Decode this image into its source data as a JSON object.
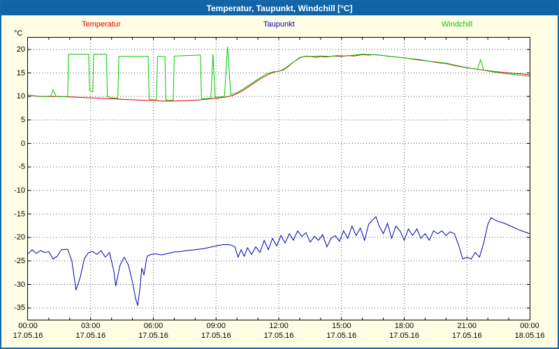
{
  "window": {
    "title": "Temperatur, Taupunkt, Windchill [°C]"
  },
  "colors": {
    "titlebar": "#1164A8",
    "window_border": "#1467A8",
    "background": "#FFFDE4",
    "plot_background": "#FFFFFF",
    "grid": "#555555",
    "axis": "#000000",
    "temperatur": "#DD0000",
    "taupunkt": "#0000B4",
    "windchill": "#00C800"
  },
  "chart_data": {
    "type": "line",
    "title": "Temperatur, Taupunkt, Windchill [°C]",
    "xlabel": "",
    "ylabel": "°C",
    "grid": "dotted",
    "legend_position": "top",
    "xlim": [
      0,
      24
    ],
    "ylim": [
      -37.5,
      22.5
    ],
    "y_ticks": [
      20,
      15,
      10,
      5,
      0,
      -5,
      -10,
      -15,
      -20,
      -25,
      -30,
      -35
    ],
    "x_ticks": [
      {
        "hour": 0,
        "time": "00:00",
        "date": "17.05.16"
      },
      {
        "hour": 3,
        "time": "03:00",
        "date": "17.05.16"
      },
      {
        "hour": 6,
        "time": "06:00",
        "date": "17.05.16"
      },
      {
        "hour": 9,
        "time": "09:00",
        "date": "17.05.16"
      },
      {
        "hour": 12,
        "time": "12:00",
        "date": "17.05.16"
      },
      {
        "hour": 15,
        "time": "15:00",
        "date": "17.05.16"
      },
      {
        "hour": 18,
        "time": "18:00",
        "date": "17.05.16"
      },
      {
        "hour": 21,
        "time": "21:00",
        "date": "17.05.16"
      },
      {
        "hour": 24,
        "time": "00:00",
        "date": "18.05.16"
      }
    ],
    "series": [
      {
        "name": "Temperatur",
        "color": "#DD0000",
        "points": [
          [
            0,
            10.3
          ],
          [
            0.3,
            10.1
          ],
          [
            0.6,
            10.0
          ],
          [
            1,
            10.0
          ],
          [
            1.4,
            10.0
          ],
          [
            2,
            9.9
          ],
          [
            2.5,
            9.8
          ],
          [
            3,
            9.7
          ],
          [
            3.5,
            9.6
          ],
          [
            4,
            9.5
          ],
          [
            4.5,
            9.4
          ],
          [
            5,
            9.3
          ],
          [
            5.5,
            9.2
          ],
          [
            6,
            9.1
          ],
          [
            6.5,
            9.0
          ],
          [
            7,
            9.0
          ],
          [
            7.5,
            9.1
          ],
          [
            8,
            9.2
          ],
          [
            8.5,
            9.4
          ],
          [
            9,
            9.6
          ],
          [
            9.5,
            9.9
          ],
          [
            9.8,
            10.2
          ],
          [
            10,
            10.6
          ],
          [
            10.3,
            11.3
          ],
          [
            10.6,
            12.2
          ],
          [
            11,
            13.4
          ],
          [
            11.3,
            14.2
          ],
          [
            11.6,
            14.9
          ],
          [
            11.8,
            15.2
          ],
          [
            12,
            15.4
          ],
          [
            12.2,
            15.6
          ],
          [
            12.4,
            16.2
          ],
          [
            12.7,
            17.3
          ],
          [
            13,
            18.2
          ],
          [
            13.2,
            18.5
          ],
          [
            13.5,
            18.5
          ],
          [
            13.8,
            18.3
          ],
          [
            14,
            18.5
          ],
          [
            14.3,
            18.4
          ],
          [
            14.6,
            18.6
          ],
          [
            15,
            18.5
          ],
          [
            15.3,
            18.7
          ],
          [
            15.6,
            18.6
          ],
          [
            16,
            18.9
          ],
          [
            16.3,
            18.8
          ],
          [
            16.6,
            18.9
          ],
          [
            17,
            18.7
          ],
          [
            17.3,
            18.5
          ],
          [
            17.6,
            18.4
          ],
          [
            18,
            18.2
          ],
          [
            18.3,
            18.0
          ],
          [
            18.6,
            17.8
          ],
          [
            19,
            17.6
          ],
          [
            19.3,
            17.4
          ],
          [
            19.6,
            17.2
          ],
          [
            20,
            17.0
          ],
          [
            20.3,
            16.7
          ],
          [
            20.6,
            16.4
          ],
          [
            21,
            16.1
          ],
          [
            21.3,
            15.9
          ],
          [
            21.6,
            15.7
          ],
          [
            22,
            15.5
          ],
          [
            22.3,
            15.3
          ],
          [
            22.6,
            15.2
          ],
          [
            23,
            15.0
          ],
          [
            23.3,
            14.9
          ],
          [
            23.6,
            14.8
          ],
          [
            24,
            14.6
          ]
        ]
      },
      {
        "name": "Taupunkt",
        "color": "#0000B4",
        "points": [
          [
            0,
            -23.5
          ],
          [
            0.2,
            -22.6
          ],
          [
            0.4,
            -23.4
          ],
          [
            0.6,
            -22.8
          ],
          [
            0.8,
            -23.2
          ],
          [
            1,
            -23.0
          ],
          [
            1.2,
            -24.6
          ],
          [
            1.4,
            -24.0
          ],
          [
            1.6,
            -22.6
          ],
          [
            1.9,
            -22.5
          ],
          [
            2.1,
            -25.0
          ],
          [
            2.3,
            -31.2
          ],
          [
            2.5,
            -28.5
          ],
          [
            2.7,
            -24.5
          ],
          [
            2.9,
            -23.2
          ],
          [
            3.1,
            -23.0
          ],
          [
            3.3,
            -23.6
          ],
          [
            3.5,
            -22.8
          ],
          [
            3.7,
            -24.2
          ],
          [
            3.9,
            -23.2
          ],
          [
            4.1,
            -27.0
          ],
          [
            4.2,
            -30.3
          ],
          [
            4.4,
            -26.0
          ],
          [
            4.6,
            -24.2
          ],
          [
            4.8,
            -25.8
          ],
          [
            5,
            -29.5
          ],
          [
            5.15,
            -33.0
          ],
          [
            5.25,
            -34.5
          ],
          [
            5.35,
            -31.0
          ],
          [
            5.45,
            -26.5
          ],
          [
            5.55,
            -28.0
          ],
          [
            5.7,
            -24.0
          ],
          [
            5.9,
            -23.6
          ],
          [
            6.1,
            -23.5
          ],
          [
            6.4,
            -23.7
          ],
          [
            6.7,
            -23.4
          ],
          [
            7,
            -23.1
          ],
          [
            7.3,
            -23.0
          ],
          [
            7.6,
            -22.8
          ],
          [
            8,
            -22.6
          ],
          [
            8.4,
            -22.4
          ],
          [
            8.8,
            -22.0
          ],
          [
            9.1,
            -21.7
          ],
          [
            9.4,
            -21.5
          ],
          [
            9.7,
            -21.6
          ],
          [
            9.9,
            -22.0
          ],
          [
            10.05,
            -24.2
          ],
          [
            10.2,
            -22.6
          ],
          [
            10.35,
            -24.0
          ],
          [
            10.5,
            -22.2
          ],
          [
            10.7,
            -23.6
          ],
          [
            10.9,
            -22.0
          ],
          [
            11.1,
            -23.2
          ],
          [
            11.3,
            -20.6
          ],
          [
            11.5,
            -22.6
          ],
          [
            11.7,
            -20.2
          ],
          [
            11.9,
            -21.8
          ],
          [
            12.1,
            -19.6
          ],
          [
            12.3,
            -21.2
          ],
          [
            12.5,
            -19.2
          ],
          [
            12.7,
            -20.6
          ],
          [
            12.9,
            -18.6
          ],
          [
            13.1,
            -19.8
          ],
          [
            13.3,
            -19.0
          ],
          [
            13.5,
            -21.0
          ],
          [
            13.7,
            -19.8
          ],
          [
            13.9,
            -20.6
          ],
          [
            14.1,
            -19.4
          ],
          [
            14.3,
            -22.0
          ],
          [
            14.5,
            -20.2
          ],
          [
            14.7,
            -19.6
          ],
          [
            14.9,
            -20.8
          ],
          [
            15.1,
            -18.6
          ],
          [
            15.3,
            -20.2
          ],
          [
            15.5,
            -17.6
          ],
          [
            15.7,
            -19.6
          ],
          [
            15.9,
            -18.0
          ],
          [
            16.1,
            -20.6
          ],
          [
            16.3,
            -17.2
          ],
          [
            16.5,
            -16.2
          ],
          [
            16.65,
            -15.6
          ],
          [
            16.8,
            -17.6
          ],
          [
            17,
            -19.2
          ],
          [
            17.2,
            -17.0
          ],
          [
            17.4,
            -20.2
          ],
          [
            17.6,
            -17.6
          ],
          [
            17.8,
            -18.6
          ],
          [
            18,
            -20.6
          ],
          [
            18.2,
            -18.2
          ],
          [
            18.4,
            -19.6
          ],
          [
            18.6,
            -18.2
          ],
          [
            18.8,
            -20.2
          ],
          [
            19,
            -19.2
          ],
          [
            19.2,
            -20.6
          ],
          [
            19.4,
            -18.6
          ],
          [
            19.6,
            -19.2
          ],
          [
            19.8,
            -18.6
          ],
          [
            20,
            -19.6
          ],
          [
            20.2,
            -18.8
          ],
          [
            20.4,
            -19.2
          ],
          [
            20.6,
            -21.6
          ],
          [
            20.8,
            -24.6
          ],
          [
            21,
            -24.2
          ],
          [
            21.2,
            -24.6
          ],
          [
            21.4,
            -23.2
          ],
          [
            21.6,
            -24.2
          ],
          [
            21.8,
            -21.2
          ],
          [
            22,
            -17.2
          ],
          [
            22.15,
            -15.8
          ],
          [
            22.3,
            -16.2
          ],
          [
            22.5,
            -16.6
          ],
          [
            22.8,
            -17.0
          ],
          [
            23.1,
            -17.6
          ],
          [
            23.5,
            -18.4
          ],
          [
            24,
            -19.2
          ]
        ]
      },
      {
        "name": "Windchill",
        "color": "#00C800",
        "points": [
          [
            0,
            10.3
          ],
          [
            0.4,
            10.1
          ],
          [
            0.8,
            10.0
          ],
          [
            1.1,
            10.1
          ],
          [
            1.2,
            11.4
          ],
          [
            1.35,
            10.0
          ],
          [
            1.9,
            10.0
          ],
          [
            1.95,
            19.0
          ],
          [
            2.9,
            19.0
          ],
          [
            2.95,
            11.2
          ],
          [
            3.1,
            11.0
          ],
          [
            3.15,
            19.0
          ],
          [
            3.75,
            19.0
          ],
          [
            3.8,
            10.0
          ],
          [
            4.0,
            9.7
          ],
          [
            4.3,
            9.6
          ],
          [
            4.35,
            18.5
          ],
          [
            5.75,
            18.5
          ],
          [
            5.8,
            9.4
          ],
          [
            6.15,
            9.3
          ],
          [
            6.2,
            18.5
          ],
          [
            6.55,
            18.5
          ],
          [
            6.6,
            9.2
          ],
          [
            6.95,
            9.2
          ],
          [
            7.0,
            18.6
          ],
          [
            8.25,
            18.8
          ],
          [
            8.3,
            9.5
          ],
          [
            8.75,
            9.6
          ],
          [
            8.85,
            19.0
          ],
          [
            8.95,
            9.8
          ],
          [
            9.4,
            10.0
          ],
          [
            9.55,
            20.6
          ],
          [
            9.7,
            10.4
          ],
          [
            10,
            10.8
          ],
          [
            10.3,
            11.6
          ],
          [
            10.6,
            12.5
          ],
          [
            11,
            13.7
          ],
          [
            11.4,
            14.8
          ],
          [
            11.8,
            15.3
          ],
          [
            12,
            15.3
          ],
          [
            12.3,
            16.0
          ],
          [
            12.6,
            17.0
          ],
          [
            13,
            18.3
          ],
          [
            13.3,
            18.6
          ],
          [
            13.6,
            18.5
          ],
          [
            14,
            18.6
          ],
          [
            14.4,
            18.5
          ],
          [
            14.8,
            18.7
          ],
          [
            15.2,
            18.6
          ],
          [
            15.6,
            18.8
          ],
          [
            16,
            19.0
          ],
          [
            16.4,
            18.9
          ],
          [
            16.8,
            18.8
          ],
          [
            17.2,
            18.6
          ],
          [
            17.6,
            18.4
          ],
          [
            18,
            18.2
          ],
          [
            18.4,
            18.0
          ],
          [
            18.8,
            17.8
          ],
          [
            19.2,
            17.5
          ],
          [
            19.6,
            17.3
          ],
          [
            20,
            17.1
          ],
          [
            20.4,
            16.7
          ],
          [
            20.8,
            16.3
          ],
          [
            21.2,
            16.0
          ],
          [
            21.5,
            15.8
          ],
          [
            21.65,
            17.8
          ],
          [
            21.8,
            15.6
          ],
          [
            22,
            15.4
          ],
          [
            22.4,
            15.1
          ],
          [
            22.8,
            14.9
          ],
          [
            23.2,
            14.7
          ],
          [
            23.6,
            14.5
          ],
          [
            24,
            14.3
          ]
        ]
      }
    ]
  }
}
